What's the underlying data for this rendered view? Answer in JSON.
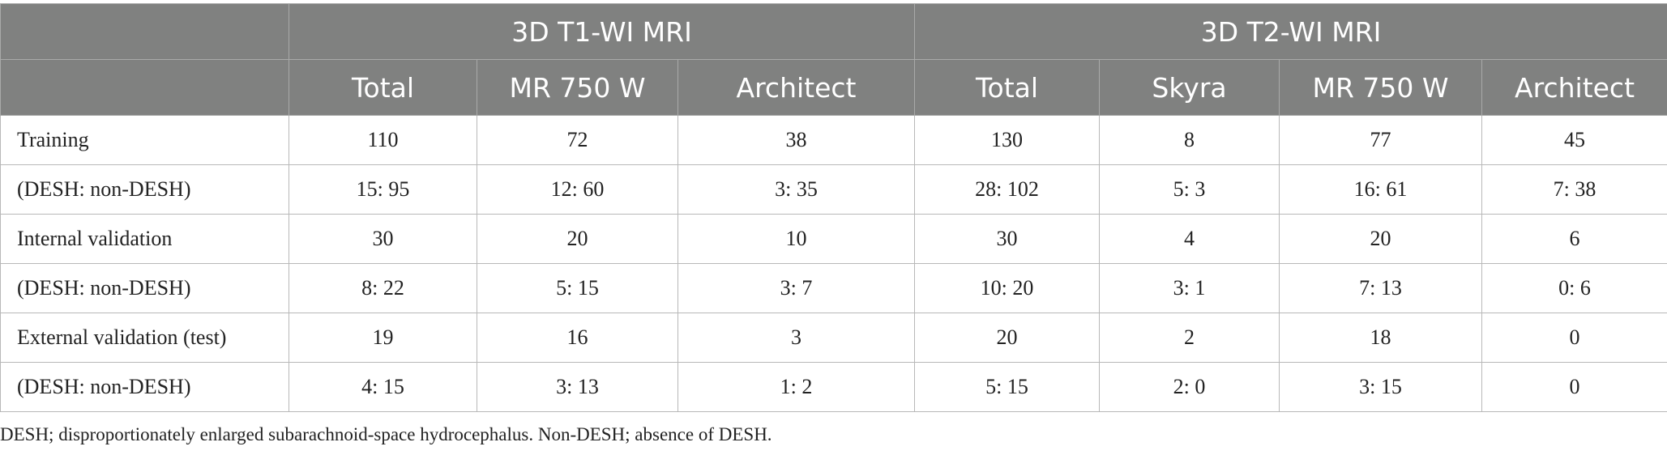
{
  "header": {
    "groups": [
      {
        "label": "3D T1-WI MRI"
      },
      {
        "label": "3D T2-WI MRI"
      }
    ],
    "columns": [
      "Total",
      "MR 750 W",
      "Architect",
      "Total",
      "Skyra",
      "MR 750 W",
      "Architect"
    ]
  },
  "rows": [
    {
      "label": "Training",
      "cells": [
        "110",
        "72",
        "38",
        "130",
        "8",
        "77",
        "45"
      ]
    },
    {
      "label": "(DESH: non-DESH)",
      "cells": [
        "15: 95",
        "12: 60",
        "3: 35",
        "28: 102",
        "5: 3",
        "16: 61",
        "7: 38"
      ]
    },
    {
      "label": "Internal validation",
      "cells": [
        "30",
        "20",
        "10",
        "30",
        "4",
        "20",
        "6"
      ]
    },
    {
      "label": "(DESH: non-DESH)",
      "cells": [
        "8: 22",
        "5: 15",
        "3: 7",
        "10: 20",
        "3: 1",
        "7: 13",
        "0: 6"
      ]
    },
    {
      "label": "External validation (test)",
      "cells": [
        "19",
        "16",
        "3",
        "20",
        "2",
        "18",
        "0"
      ]
    },
    {
      "label": "(DESH: non-DESH)",
      "cells": [
        "4: 15",
        "3: 13",
        "1: 2",
        "5: 15",
        "2: 0",
        "3: 15",
        "0"
      ]
    }
  ],
  "footnote": "DESH; disproportionately enlarged subarachnoid-space hydrocephalus. Non-DESH; absence of DESH."
}
